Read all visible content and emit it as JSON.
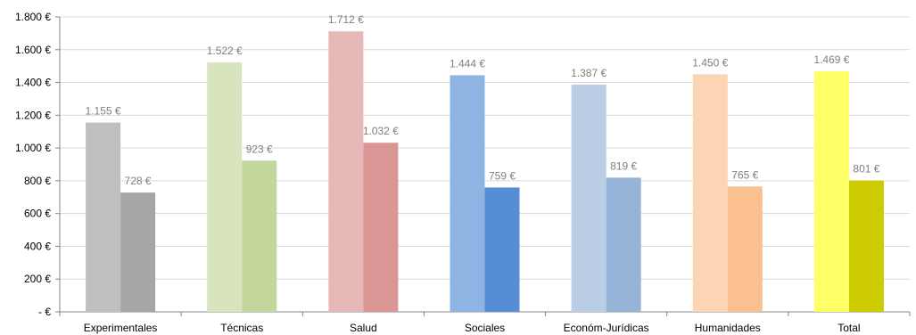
{
  "chart_data": {
    "type": "bar",
    "title": "",
    "xlabel": "",
    "ylabel": "",
    "ylim": [
      0,
      1800
    ],
    "ytick_step": 200,
    "grid": true,
    "legend": "none",
    "y_tick_labels": [
      "-   €",
      "200 €",
      "400 €",
      "600 €",
      "800 €",
      "1.000 €",
      "1.200 €",
      "1.400 €",
      "1.600 €",
      "1.800 €"
    ],
    "categories": [
      "Experimentales",
      "Técnicas",
      "Salud",
      "Sociales",
      "Económ-Jurídicas",
      "Humanidades",
      "Total"
    ],
    "series": [
      {
        "values": [
          1155,
          1522,
          1712,
          1444,
          1387,
          1450,
          1469
        ],
        "labels": [
          "1.155 €",
          "1.522 €",
          "1.712 €",
          "1.444 €",
          "1.387 €",
          "1.450 €",
          "1.469 €"
        ],
        "colors": [
          "#bfbfbf",
          "#d7e4bd",
          "#e6b9b8",
          "#8eb4e3",
          "#b9cde5",
          "#fcd5b5",
          "#ffff66"
        ]
      },
      {
        "values": [
          728,
          923,
          1032,
          759,
          819,
          765,
          801
        ],
        "labels": [
          "728 €",
          "923 €",
          "1.032 €",
          "759 €",
          "819 €",
          "765 €",
          "801 €"
        ],
        "colors": [
          "#a6a6a6",
          "#c3d69b",
          "#d99694",
          "#558ed5",
          "#95b3d7",
          "#fac090",
          "#cccc00"
        ]
      }
    ]
  }
}
